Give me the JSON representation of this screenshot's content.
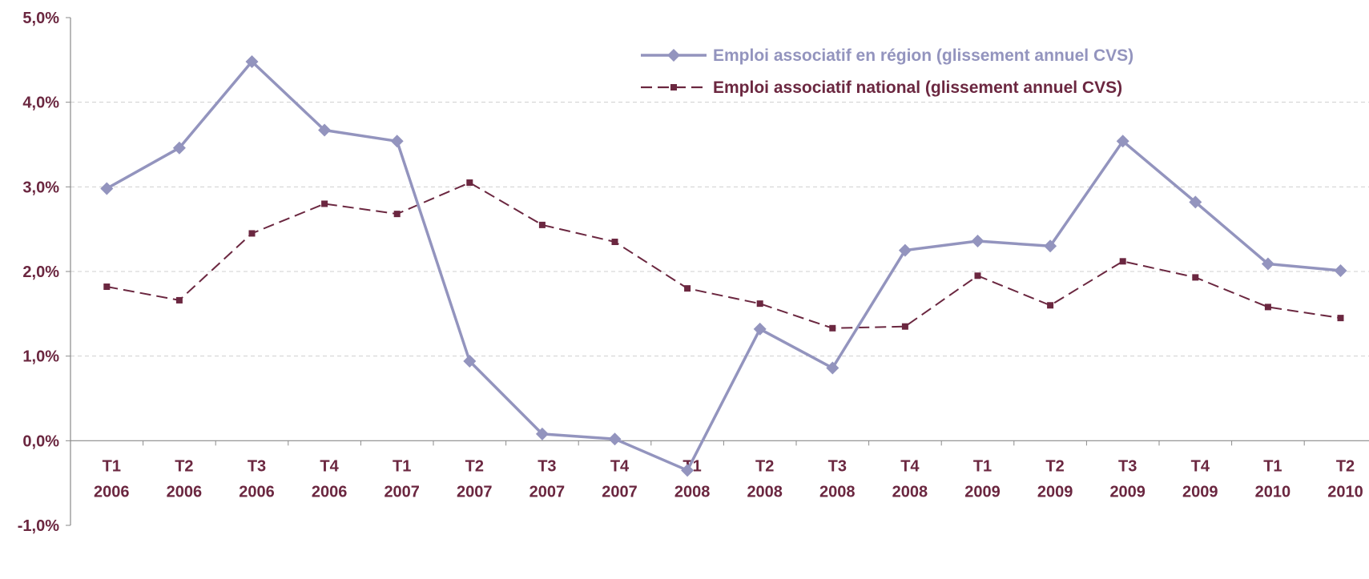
{
  "chart_data": {
    "type": "line",
    "categories": [
      [
        "T1",
        "2006"
      ],
      [
        "T2",
        "2006"
      ],
      [
        "T3",
        "2006"
      ],
      [
        "T4",
        "2006"
      ],
      [
        "T1",
        "2007"
      ],
      [
        "T2",
        "2007"
      ],
      [
        "T3",
        "2007"
      ],
      [
        "T4",
        "2007"
      ],
      [
        "T1",
        "2008"
      ],
      [
        "T2",
        "2008"
      ],
      [
        "T3",
        "2008"
      ],
      [
        "T4",
        "2008"
      ],
      [
        "T1",
        "2009"
      ],
      [
        "T2",
        "2009"
      ],
      [
        "T3",
        "2009"
      ],
      [
        "T4",
        "2009"
      ],
      [
        "T1",
        "2010"
      ],
      [
        "T2",
        "2010"
      ]
    ],
    "y_ticks": [
      "5,0%",
      "4,0%",
      "3,0%",
      "2,0%",
      "1,0%",
      "0,0%",
      "-1,0%"
    ],
    "ylim": [
      -1.0,
      5.0
    ],
    "grid": "horizontal dashed",
    "legend_position": "top-right",
    "series": [
      {
        "name": "Emploi associatif en région (glissement annuel CVS)",
        "color": "#9394be",
        "style": "solid",
        "marker": "diamond",
        "values": [
          2.98,
          3.46,
          4.48,
          3.67,
          3.54,
          0.94,
          0.08,
          0.02,
          -0.35,
          1.32,
          0.86,
          2.25,
          2.36,
          2.3,
          3.54,
          2.82,
          2.09,
          2.01
        ]
      },
      {
        "name": "Emploi associatif national (glissement annuel CVS)",
        "color": "#6b2740",
        "style": "dashed",
        "marker": "square",
        "values": [
          1.82,
          1.66,
          2.45,
          2.8,
          2.68,
          3.05,
          2.55,
          2.35,
          1.8,
          1.62,
          1.33,
          1.35,
          1.95,
          1.6,
          2.12,
          1.93,
          1.58,
          1.45
        ]
      }
    ]
  }
}
